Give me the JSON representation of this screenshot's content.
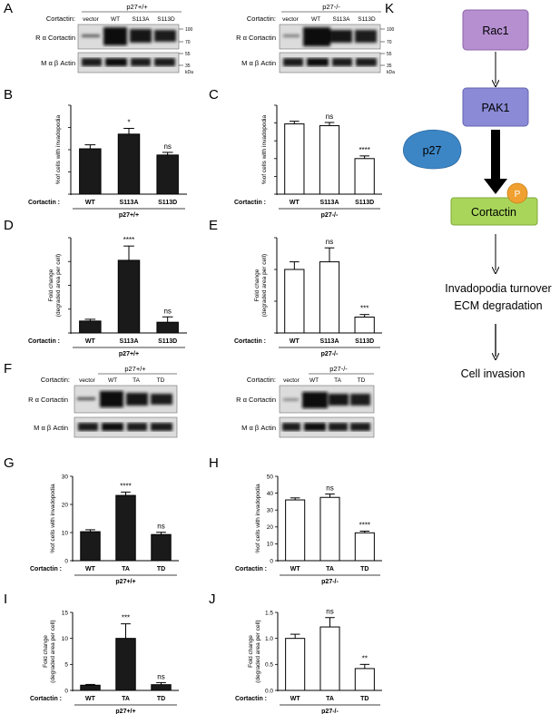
{
  "panel_letters": [
    "A",
    "B",
    "C",
    "D",
    "E",
    "F",
    "G",
    "H",
    "I",
    "J",
    "K"
  ],
  "blots": {
    "A_left": {
      "genotype": "p27+/+",
      "header": "Cortactin:",
      "lanes": [
        "vector",
        "WT",
        "S113A",
        "S113D"
      ],
      "row1": "R α Cortactin",
      "row2": "M α β Actin",
      "markers": [
        "100",
        "70",
        "55",
        "35"
      ],
      "kda": "kDa"
    },
    "A_right": {
      "genotype": "p27-/-",
      "header": "Cortactin:",
      "lanes": [
        "vector",
        "WT",
        "S113A",
        "S113D"
      ],
      "row1": "R α Cortactin",
      "row2": "M α β Actin",
      "markers": [
        "100",
        "70",
        "55",
        "35"
      ],
      "kda": "kDa"
    },
    "F_left": {
      "genotype": "p27+/+",
      "header": "Cortactin:",
      "lanes": [
        "vector",
        "WT",
        "TA",
        "TD"
      ],
      "row1": "R α Cortactin",
      "row2": "M α β Actin"
    },
    "F_right": {
      "genotype": "p27-/-",
      "header": "Cortactin:",
      "lanes": [
        "vector",
        "WT",
        "TA",
        "TD"
      ],
      "row1": "R α Cortactin",
      "row2": "M α β Actin"
    }
  },
  "cortactin_label": "Cortactin :",
  "chart_data": [
    {
      "panel": "B",
      "type": "bar",
      "fill": "#1a1a1a",
      "ylabel": "%of cells with invadopodia",
      "genotype": "p27+/+",
      "categories": [
        "WT",
        "S113A",
        "S113D"
      ],
      "values": [
        10.2,
        13.5,
        8.8
      ],
      "errors": [
        0.9,
        1.3,
        0.6
      ],
      "significance": [
        "",
        "*",
        "ns"
      ],
      "ylim": [
        0,
        20
      ],
      "yticks": [
        "0",
        "5",
        "10",
        "15",
        "20"
      ],
      "show_ticks": false
    },
    {
      "panel": "C",
      "type": "bar",
      "fill": "#ffffff",
      "ylabel": "%of cells with invadopodia",
      "genotype": "p27-/-",
      "categories": [
        "WT",
        "S113A",
        "S113D"
      ],
      "values": [
        39.5,
        38.5,
        20.0
      ],
      "errors": [
        1.5,
        1.8,
        1.5
      ],
      "significance": [
        "",
        "ns",
        "****"
      ],
      "ylim": [
        0,
        50
      ],
      "yticks": [
        "0",
        "10",
        "20",
        "30",
        "40",
        "50"
      ],
      "show_ticks": false
    },
    {
      "panel": "D",
      "type": "bar",
      "fill": "#1a1a1a",
      "ylabel": "Fold change\n(degraded area per cell)",
      "genotype": "p27+/+",
      "categories": [
        "WT",
        "S113A",
        "S113D"
      ],
      "values": [
        1.0,
        6.1,
        0.9
      ],
      "errors": [
        0.15,
        1.2,
        0.45
      ],
      "significance": [
        "",
        "****",
        "ns"
      ],
      "ylim": [
        0,
        8
      ],
      "yticks": [
        "0",
        "2",
        "4",
        "6",
        "8"
      ],
      "show_ticks": false
    },
    {
      "panel": "E",
      "type": "bar",
      "fill": "#ffffff",
      "ylabel": "Fold change\n(degraded area per cell)",
      "genotype": "p27-/-",
      "categories": [
        "WT",
        "S113A",
        "S113D"
      ],
      "values": [
        1.0,
        1.12,
        0.25
      ],
      "errors": [
        0.12,
        0.22,
        0.04
      ],
      "significance": [
        "",
        "ns",
        "***"
      ],
      "ylim": [
        0,
        1.5
      ],
      "yticks": [
        "0.0",
        "0.5",
        "1.0",
        "1.5"
      ],
      "show_ticks": false
    },
    {
      "panel": "G",
      "type": "bar",
      "fill": "#1a1a1a",
      "ylabel": "%of cells with invadopodia",
      "genotype": "p27+/+",
      "categories": [
        "WT",
        "TA",
        "TD"
      ],
      "values": [
        10.3,
        23.2,
        9.3
      ],
      "errors": [
        0.7,
        1.2,
        0.8
      ],
      "significance": [
        "",
        "****",
        "ns"
      ],
      "ylim": [
        0,
        30
      ],
      "yticks": [
        "0",
        "10",
        "20",
        "30"
      ],
      "show_ticks": true
    },
    {
      "panel": "H",
      "type": "bar",
      "fill": "#ffffff",
      "ylabel": "%of cells with invadopodia",
      "genotype": "p27-/-",
      "categories": [
        "WT",
        "TA",
        "TD"
      ],
      "values": [
        36.0,
        37.5,
        16.5
      ],
      "errors": [
        1.2,
        2.0,
        1.0
      ],
      "significance": [
        "",
        "ns",
        "****"
      ],
      "ylim": [
        0,
        50
      ],
      "yticks": [
        "0",
        "10",
        "20",
        "30",
        "40",
        "50"
      ],
      "show_ticks": true
    },
    {
      "panel": "I",
      "type": "bar",
      "fill": "#1a1a1a",
      "ylabel": "Fold change\n(degraded area per cell)",
      "genotype": "p27+/+",
      "categories": [
        "WT",
        "TA",
        "TD"
      ],
      "values": [
        1.0,
        10.0,
        1.1
      ],
      "errors": [
        0.15,
        2.8,
        0.4
      ],
      "significance": [
        "",
        "***",
        "ns"
      ],
      "ylim": [
        0,
        15
      ],
      "yticks": [
        "0",
        "5",
        "10",
        "15"
      ],
      "show_ticks": true
    },
    {
      "panel": "J",
      "type": "bar",
      "fill": "#ffffff",
      "ylabel": "Fold change\n(degraded area per cell)",
      "genotype": "p27-/-",
      "categories": [
        "WT",
        "TA",
        "TD"
      ],
      "values": [
        1.0,
        1.22,
        0.42
      ],
      "errors": [
        0.08,
        0.18,
        0.08
      ],
      "significance": [
        "",
        "ns",
        "**"
      ],
      "ylim": [
        0,
        1.5
      ],
      "yticks": [
        "0.0",
        "0.5",
        "1.0",
        "1.5"
      ],
      "show_ticks": true
    }
  ],
  "pathway": {
    "rac1": "Rac1",
    "pak1": "PAK1",
    "p27": "p27",
    "phospho": "P",
    "cortactin": "Cortactin",
    "outcome1_line1": "Invadopodia turnover",
    "outcome1_line2": "ECM degradation",
    "outcome2": "Cell invasion",
    "colors": {
      "rac1": "#b58fd0",
      "pak1": "#8a8ad6",
      "p27": "#3d86c6",
      "phospho": "#f0a030",
      "cortactin": "#a9d65a"
    }
  }
}
